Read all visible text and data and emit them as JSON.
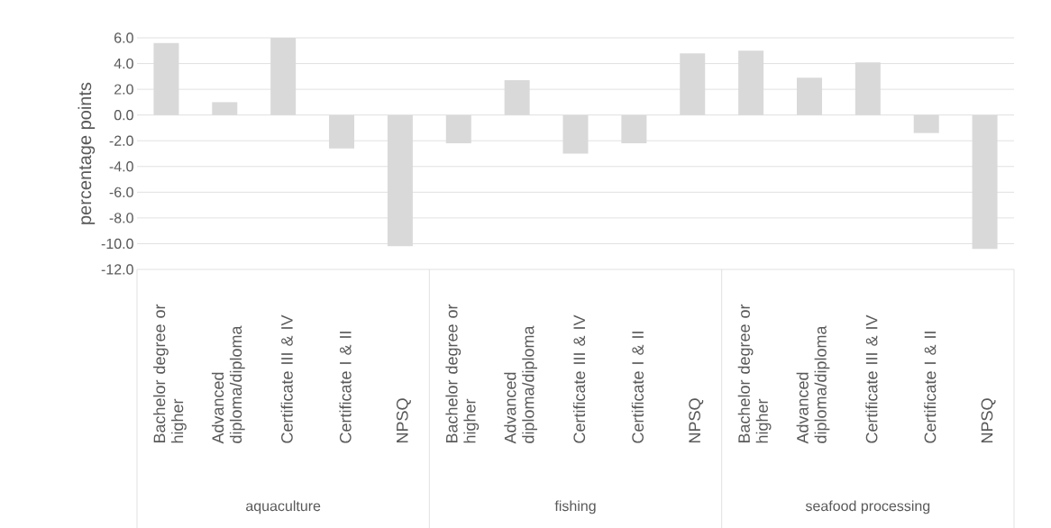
{
  "chart_data": {
    "type": "bar",
    "categories": [
      "Bachelor degree or higher",
      "Advanced diploma/diploma",
      "Certificate III & IV",
      "Certificate I & II",
      "NPSQ",
      "Bachelor degree or higher",
      "Advanced diploma/diploma",
      "Certificate III & IV",
      "Certificate I & II",
      "NPSQ",
      "Bachelor degree or higher",
      "Advanced diploma/diploma",
      "Certificate III & IV",
      "Certificate I & II",
      "NPSQ"
    ],
    "values": [
      5.6,
      1.0,
      6.0,
      -2.6,
      -10.2,
      -2.2,
      2.7,
      -3.0,
      -2.2,
      4.8,
      5.0,
      2.9,
      4.1,
      -1.4,
      -10.4
    ],
    "color": "#d9d9d9",
    "ylabel": "percentage points",
    "ylim": [
      -12,
      6
    ],
    "yticks": [
      {
        "value": -12,
        "label": "-12.0"
      },
      {
        "value": -10,
        "label": "-10.0"
      },
      {
        "value": -8,
        "label": "-8.0"
      },
      {
        "value": -6,
        "label": "-6.0"
      },
      {
        "value": -4,
        "label": "-4.0"
      },
      {
        "value": -2,
        "label": "-2.0"
      },
      {
        "value": 0,
        "label": "0.0"
      },
      {
        "value": 2,
        "label": "2.0"
      },
      {
        "value": 4,
        "label": "4.0"
      },
      {
        "value": 6,
        "label": "6.0"
      }
    ],
    "grid": "y",
    "annotations": [
      "aquaculture",
      "fishing",
      "seafood processing"
    ]
  }
}
